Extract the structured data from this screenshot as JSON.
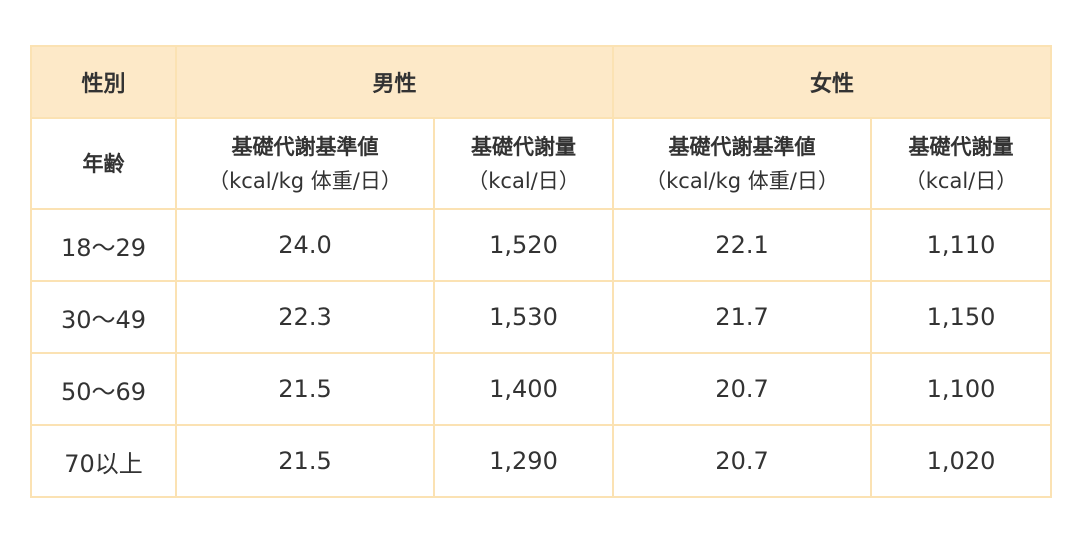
{
  "table": {
    "header": [
      "性別",
      "男性",
      "女性"
    ],
    "subheader": {
      "age": "年齢",
      "columns": [
        [
          "基礎代謝基準値",
          "（kcal/kg 体重/日）"
        ],
        [
          "基礎代謝量",
          "（kcal/日）"
        ],
        [
          "基礎代謝基準値",
          "（kcal/kg 体重/日）"
        ],
        [
          "基礎代謝量",
          "（kcal/日）"
        ]
      ]
    },
    "rows": [
      [
        "18～29",
        "24.0",
        "1,520",
        "22.1",
        "1,110"
      ],
      [
        "30～49",
        "22.3",
        "1,530",
        "21.7",
        "1,150"
      ],
      [
        "50～69",
        "21.5",
        "1,400",
        "20.7",
        "1,100"
      ],
      [
        "70以上",
        "21.5",
        "1,290",
        "20.7",
        "1,020"
      ]
    ]
  }
}
